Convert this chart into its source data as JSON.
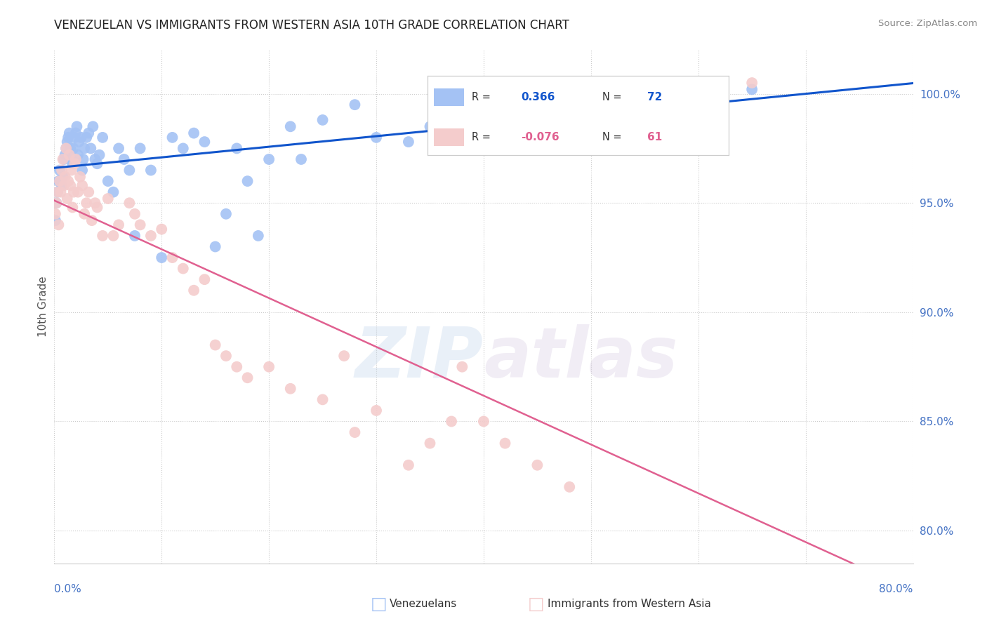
{
  "title": "VENEZUELAN VS IMMIGRANTS FROM WESTERN ASIA 10TH GRADE CORRELATION CHART",
  "source": "Source: ZipAtlas.com",
  "ylabel": "10th Grade",
  "right_yvalues": [
    80.0,
    85.0,
    90.0,
    95.0,
    100.0
  ],
  "blue_R": 0.366,
  "blue_N": 72,
  "pink_R": -0.076,
  "pink_N": 61,
  "blue_color": "#a4c2f4",
  "pink_color": "#f4cccc",
  "blue_line_color": "#1155cc",
  "pink_line_color": "#e06090",
  "watermark_zip": "ZIP",
  "watermark_atlas": "atlas",
  "xmin": 0.0,
  "xmax": 80.0,
  "ymin": 78.5,
  "ymax": 102.0,
  "blue_scatter_x": [
    0.1,
    0.2,
    0.3,
    0.4,
    0.5,
    0.6,
    0.7,
    0.8,
    0.9,
    1.0,
    1.1,
    1.2,
    1.3,
    1.4,
    1.5,
    1.6,
    1.7,
    1.8,
    1.9,
    2.0,
    2.1,
    2.2,
    2.3,
    2.5,
    2.6,
    2.7,
    2.8,
    3.0,
    3.2,
    3.4,
    3.6,
    3.8,
    4.0,
    4.2,
    4.5,
    5.0,
    5.5,
    6.0,
    6.5,
    7.0,
    7.5,
    8.0,
    9.0,
    10.0,
    11.0,
    12.0,
    13.0,
    14.0,
    15.0,
    16.0,
    17.0,
    18.0,
    19.0,
    20.0,
    22.0,
    23.0,
    25.0,
    28.0,
    30.0,
    33.0,
    35.0,
    38.0,
    40.0,
    43.0,
    45.0,
    48.0,
    50.0,
    52.0,
    55.0,
    58.0,
    62.0,
    65.0
  ],
  "blue_scatter_y": [
    94.2,
    95.0,
    95.5,
    96.0,
    96.5,
    96.0,
    95.8,
    96.2,
    97.0,
    97.2,
    97.5,
    97.8,
    98.0,
    98.2,
    97.5,
    97.0,
    96.8,
    97.5,
    98.0,
    98.2,
    98.5,
    97.2,
    97.8,
    98.0,
    96.5,
    97.0,
    97.5,
    98.0,
    98.2,
    97.5,
    98.5,
    97.0,
    96.8,
    97.2,
    98.0,
    96.0,
    95.5,
    97.5,
    97.0,
    96.5,
    93.5,
    97.5,
    96.5,
    92.5,
    98.0,
    97.5,
    98.2,
    97.8,
    93.0,
    94.5,
    97.5,
    96.0,
    93.5,
    97.0,
    98.5,
    97.0,
    98.8,
    99.5,
    98.0,
    97.8,
    98.5,
    97.5,
    99.2,
    99.0,
    99.5,
    99.8,
    100.0,
    99.5,
    98.5,
    99.0,
    100.5,
    100.2
  ],
  "pink_scatter_x": [
    0.1,
    0.2,
    0.3,
    0.4,
    0.5,
    0.6,
    0.7,
    0.8,
    0.9,
    1.0,
    1.1,
    1.2,
    1.3,
    1.4,
    1.5,
    1.6,
    1.7,
    1.8,
    1.9,
    2.0,
    2.2,
    2.4,
    2.6,
    2.8,
    3.0,
    3.2,
    3.5,
    3.8,
    4.0,
    4.5,
    5.0,
    5.5,
    6.0,
    7.0,
    7.5,
    8.0,
    9.0,
    10.0,
    11.0,
    12.0,
    13.0,
    14.0,
    15.0,
    16.0,
    17.0,
    18.0,
    20.0,
    22.0,
    25.0,
    27.0,
    28.0,
    30.0,
    33.0,
    35.0,
    37.0,
    38.0,
    40.0,
    42.0,
    45.0,
    48.0,
    65.0
  ],
  "pink_scatter_y": [
    94.5,
    95.0,
    95.5,
    94.0,
    96.0,
    95.5,
    96.5,
    97.0,
    95.8,
    96.2,
    97.5,
    95.2,
    96.0,
    97.2,
    95.8,
    96.5,
    94.8,
    95.5,
    96.8,
    97.0,
    95.5,
    96.2,
    95.8,
    94.5,
    95.0,
    95.5,
    94.2,
    95.0,
    94.8,
    93.5,
    95.2,
    93.5,
    94.0,
    95.0,
    94.5,
    94.0,
    93.5,
    93.8,
    92.5,
    92.0,
    91.0,
    91.5,
    88.5,
    88.0,
    87.5,
    87.0,
    87.5,
    86.5,
    86.0,
    88.0,
    84.5,
    85.5,
    83.0,
    84.0,
    85.0,
    87.5,
    85.0,
    84.0,
    83.0,
    82.0,
    100.5
  ]
}
